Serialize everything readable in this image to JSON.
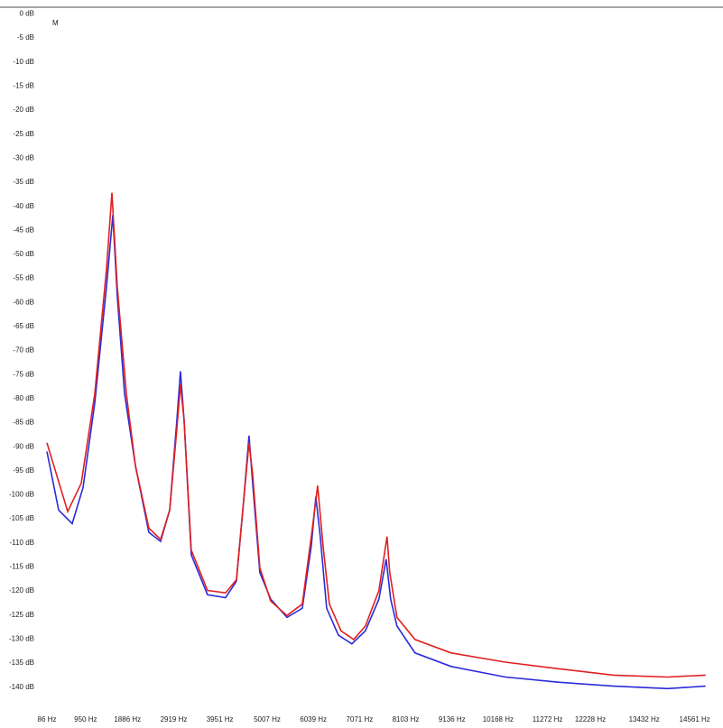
{
  "chart_data": {
    "type": "line",
    "annotation": "M",
    "xlim": [
      86,
      14870
    ],
    "ylim": [
      -144,
      1.4
    ],
    "xticks": [
      {
        "value": 86,
        "label": "86 Hz"
      },
      {
        "value": 950,
        "label": "950 Hz"
      },
      {
        "value": 1886,
        "label": "1886 Hz"
      },
      {
        "value": 2919,
        "label": "2919 Hz"
      },
      {
        "value": 3951,
        "label": "3951 Hz"
      },
      {
        "value": 5007,
        "label": "5007 Hz"
      },
      {
        "value": 6039,
        "label": "6039 Hz"
      },
      {
        "value": 7071,
        "label": "7071 Hz"
      },
      {
        "value": 8103,
        "label": "8103 Hz"
      },
      {
        "value": 9136,
        "label": "9136 Hz"
      },
      {
        "value": 10168,
        "label": "10168 Hz"
      },
      {
        "value": 11272,
        "label": "11272 Hz"
      },
      {
        "value": 12228,
        "label": "12228 Hz"
      },
      {
        "value": 13432,
        "label": "13432 Hz"
      },
      {
        "value": 14561,
        "label": "14561 Hz"
      }
    ],
    "yticks": [
      {
        "value": 0,
        "label": "0 dB"
      },
      {
        "value": -5,
        "label": "-5 dB"
      },
      {
        "value": -10,
        "label": "-10 dB"
      },
      {
        "value": -15,
        "label": "-15 dB"
      },
      {
        "value": -20,
        "label": "-20 dB"
      },
      {
        "value": -25,
        "label": "-25 dB"
      },
      {
        "value": -30,
        "label": "-30 dB"
      },
      {
        "value": -35,
        "label": "-35 dB"
      },
      {
        "value": -40,
        "label": "-40 dB"
      },
      {
        "value": -45,
        "label": "-45 dB"
      },
      {
        "value": -50,
        "label": "-50 dB"
      },
      {
        "value": -55,
        "label": "-55 dB"
      },
      {
        "value": -60,
        "label": "-60 dB"
      },
      {
        "value": -65,
        "label": "-65 dB"
      },
      {
        "value": -70,
        "label": "-70 dB"
      },
      {
        "value": -75,
        "label": "-75 dB"
      },
      {
        "value": -80,
        "label": "-80 dB"
      },
      {
        "value": -85,
        "label": "-85 dB"
      },
      {
        "value": -90,
        "label": "-90 dB"
      },
      {
        "value": -95,
        "label": "-95 dB"
      },
      {
        "value": -100,
        "label": "-100 dB"
      },
      {
        "value": -105,
        "label": "-105 dB"
      },
      {
        "value": -110,
        "label": "-110 dB"
      },
      {
        "value": -115,
        "label": "-115 dB"
      },
      {
        "value": -120,
        "label": "-120 dB"
      },
      {
        "value": -125,
        "label": "-125 dB"
      },
      {
        "value": -130,
        "label": "-130 dB"
      },
      {
        "value": -135,
        "label": "-135 dB"
      },
      {
        "value": -140,
        "label": "-140 dB"
      }
    ],
    "series": [
      {
        "color": "#2b2bd8",
        "x": [
          86,
          348,
          651,
          892,
          1154,
          1417,
          1558,
          1658,
          1820,
          2062,
          2364,
          2626,
          2828,
          2989,
          3070,
          3151,
          3312,
          3675,
          4078,
          4320,
          4481,
          4602,
          4683,
          4844,
          5086,
          5449,
          5791,
          5993,
          6094,
          6194,
          6336,
          6598,
          6900,
          7202,
          7505,
          7666,
          7767,
          7908,
          8311,
          9118,
          10327,
          11537,
          12746,
          13956,
          14803
        ],
        "values": [
          -91,
          -103.2,
          -106,
          -98.5,
          -80.9,
          -56.7,
          -41.8,
          -58.6,
          -79,
          -93.9,
          -107.8,
          -109.7,
          -103.2,
          -84.6,
          -74.3,
          -84.6,
          -112.5,
          -120.8,
          -121.4,
          -118,
          -101.3,
          -87.7,
          -97.6,
          -116.2,
          -121.7,
          -125.5,
          -123.6,
          -110.6,
          -100.4,
          -108.7,
          -123.6,
          -129.2,
          -131,
          -128.3,
          -121.7,
          -113.4,
          -121.7,
          -127.3,
          -132.9,
          -135.7,
          -137.9,
          -139,
          -139.8,
          -140.3,
          -139.8
        ]
      },
      {
        "color": "#e02020",
        "x": [
          86,
          550,
          852,
          1154,
          1417,
          1538,
          1658,
          1860,
          2062,
          2364,
          2626,
          2828,
          2989,
          3070,
          3151,
          3312,
          3675,
          4078,
          4320,
          4481,
          4602,
          4683,
          4844,
          5086,
          5449,
          5791,
          5993,
          6134,
          6255,
          6396,
          6658,
          6940,
          7202,
          7505,
          7686,
          7747,
          7908,
          8311,
          9118,
          10327,
          11537,
          12746,
          13956,
          14803
        ],
        "values": [
          -89.2,
          -103.5,
          -97.6,
          -79,
          -53,
          -37.2,
          -56.7,
          -79,
          -93.9,
          -106.9,
          -109.3,
          -103.2,
          -86.4,
          -77.1,
          -84.6,
          -111.5,
          -119.9,
          -120.4,
          -117.7,
          -101.3,
          -89.2,
          -95.7,
          -115.2,
          -122.1,
          -125.1,
          -122.7,
          -108.7,
          -98.1,
          -110.6,
          -122.7,
          -128.3,
          -130.1,
          -127.3,
          -119.9,
          -108.7,
          -116.2,
          -125.5,
          -130.1,
          -132.9,
          -134.8,
          -136.2,
          -137.5,
          -137.9,
          -137.5
        ]
      }
    ]
  }
}
